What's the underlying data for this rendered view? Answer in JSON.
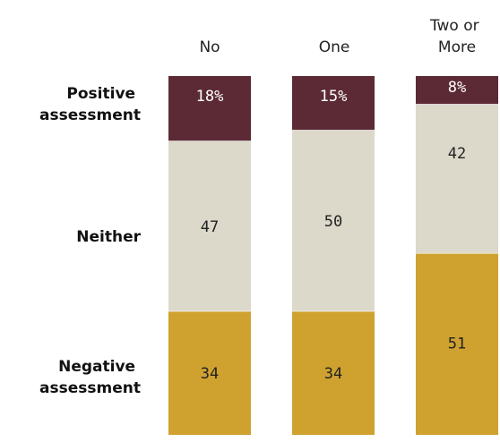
{
  "chart_data": {
    "type": "bar",
    "stacked": true,
    "orientation": "vertical",
    "categories": [
      "No",
      "One",
      "Two or More"
    ],
    "series": [
      {
        "name": "Positive assessment",
        "values": [
          18,
          15,
          8
        ],
        "labels": [
          "18%",
          "15%",
          "8%"
        ],
        "color": "#5b2a35",
        "label_color": "#ffffff"
      },
      {
        "name": "Neither",
        "values": [
          47,
          50,
          42
        ],
        "labels": [
          "47",
          "50",
          "42"
        ],
        "color": "#dcd9cb",
        "label_color": "#222222"
      },
      {
        "name": "Negative assessment",
        "values": [
          34,
          34,
          51
        ],
        "labels": [
          "34",
          "34",
          "51"
        ],
        "color": "#cfa22f",
        "label_color": "#222222"
      }
    ],
    "row_labels": {
      "positive": [
        "Positive",
        "assessment"
      ],
      "neither": "Neither",
      "negative": [
        "Negative",
        "assessment"
      ]
    },
    "title": "",
    "xlabel": "",
    "ylabel": "",
    "ylim": [
      0,
      100
    ],
    "grid": false,
    "legend": "left"
  }
}
